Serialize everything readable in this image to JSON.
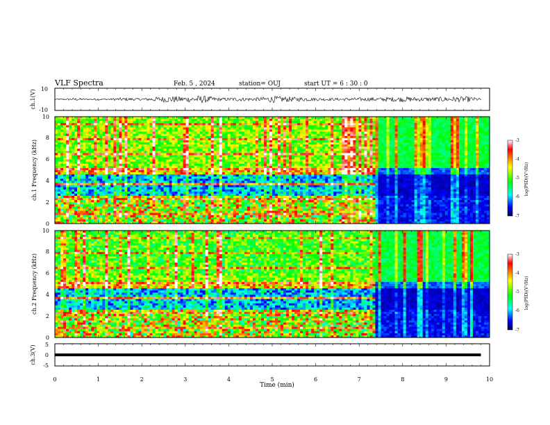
{
  "header": {
    "title": "VLF Spectra",
    "date": "Feb. 5 , 2024",
    "station": "station= OUJ",
    "start": "start UT = 6 : 30 : 0"
  },
  "chart_data": [
    {
      "type": "line",
      "panel": "ch1-waveform",
      "ylabel": "ch.1(V)",
      "ylim": [
        -10,
        10
      ],
      "yticks": [
        "10",
        "-10"
      ],
      "xlim": [
        0,
        10
      ],
      "x": [
        0,
        0.5,
        1.0,
        1.5,
        2.0,
        2.5,
        2.7,
        3.0,
        3.4,
        3.8,
        4.2,
        4.6,
        5.0,
        5.5,
        6.0,
        6.5,
        7.0,
        7.5,
        8.0,
        8.5,
        9.0,
        9.5,
        9.8
      ],
      "y": [
        0,
        0.8,
        -0.6,
        1.2,
        0.5,
        2.5,
        3.0,
        2.2,
        3.5,
        1.0,
        1.5,
        1.0,
        3.0,
        2.0,
        1.0,
        0.8,
        1.2,
        1.5,
        2.2,
        1.5,
        2.0,
        2.5,
        0.5
      ]
    },
    {
      "type": "heatmap",
      "panel": "ch1-spectrogram",
      "ylabel": "ch.1 Frequency (kHz)",
      "ylim": [
        0,
        10
      ],
      "yticks": [
        "0",
        "2",
        "4",
        "6",
        "8",
        "10"
      ],
      "xlim": [
        0,
        10
      ],
      "colorbar": {
        "label": "log(PSD)(V²/Hz)",
        "range": [
          -7,
          -3
        ],
        "ticks": [
          "-3",
          "-4",
          "-5",
          "-6",
          "-7"
        ]
      }
    },
    {
      "type": "heatmap",
      "panel": "ch2-spectrogram",
      "ylabel": "ch.2 Frequency (kHz)",
      "ylim": [
        0,
        10
      ],
      "yticks": [
        "0",
        "2",
        "4",
        "6",
        "8",
        "10"
      ],
      "xlim": [
        0,
        10
      ],
      "colorbar": {
        "label": "log(PSD)(V²/Hz)",
        "range": [
          -7,
          -3
        ],
        "ticks": [
          "-3",
          "-4",
          "-5",
          "-6",
          "-7"
        ]
      }
    },
    {
      "type": "line",
      "panel": "ch3-waveform",
      "ylabel": "ch.3(V)",
      "ylim": [
        -5,
        5
      ],
      "yticks": [
        "5",
        "0",
        "-5"
      ],
      "xlim": [
        0,
        10
      ],
      "x": [
        0,
        9.8
      ],
      "y": [
        0,
        0
      ]
    }
  ],
  "xaxis": {
    "label": "Time (min)",
    "ticks": [
      "0",
      "1",
      "2",
      "3",
      "4",
      "5",
      "6",
      "7",
      "8",
      "9",
      "10"
    ]
  },
  "colors": {
    "colormap": [
      "#000066",
      "#0000ff",
      "#00ffff",
      "#00ff00",
      "#ffff00",
      "#ff0000",
      "#ffffff"
    ]
  }
}
